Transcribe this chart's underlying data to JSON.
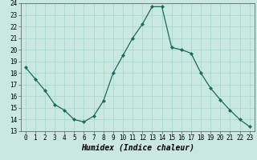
{
  "x": [
    0,
    1,
    2,
    3,
    4,
    5,
    6,
    7,
    8,
    9,
    10,
    11,
    12,
    13,
    14,
    15,
    16,
    17,
    18,
    19,
    20,
    21,
    22,
    23
  ],
  "y": [
    18.5,
    17.5,
    16.5,
    15.3,
    14.8,
    14.0,
    13.8,
    14.3,
    15.6,
    18.0,
    19.5,
    21.0,
    22.2,
    23.7,
    23.7,
    20.2,
    20.0,
    19.7,
    18.0,
    16.7,
    15.7,
    14.8,
    14.0,
    13.4
  ],
  "xlabel": "Humidex (Indice chaleur)",
  "xlim": [
    -0.5,
    23.5
  ],
  "ylim": [
    13,
    24
  ],
  "yticks": [
    13,
    14,
    15,
    16,
    17,
    18,
    19,
    20,
    21,
    22,
    23,
    24
  ],
  "xticks": [
    0,
    1,
    2,
    3,
    4,
    5,
    6,
    7,
    8,
    9,
    10,
    11,
    12,
    13,
    14,
    15,
    16,
    17,
    18,
    19,
    20,
    21,
    22,
    23
  ],
  "line_color": "#1a6b5a",
  "marker_color": "#1a6b5a",
  "bg_color": "#c8e8e0",
  "grid_color": "#a8d8d0",
  "tick_fontsize": 5.5,
  "xlabel_fontsize": 7.0
}
